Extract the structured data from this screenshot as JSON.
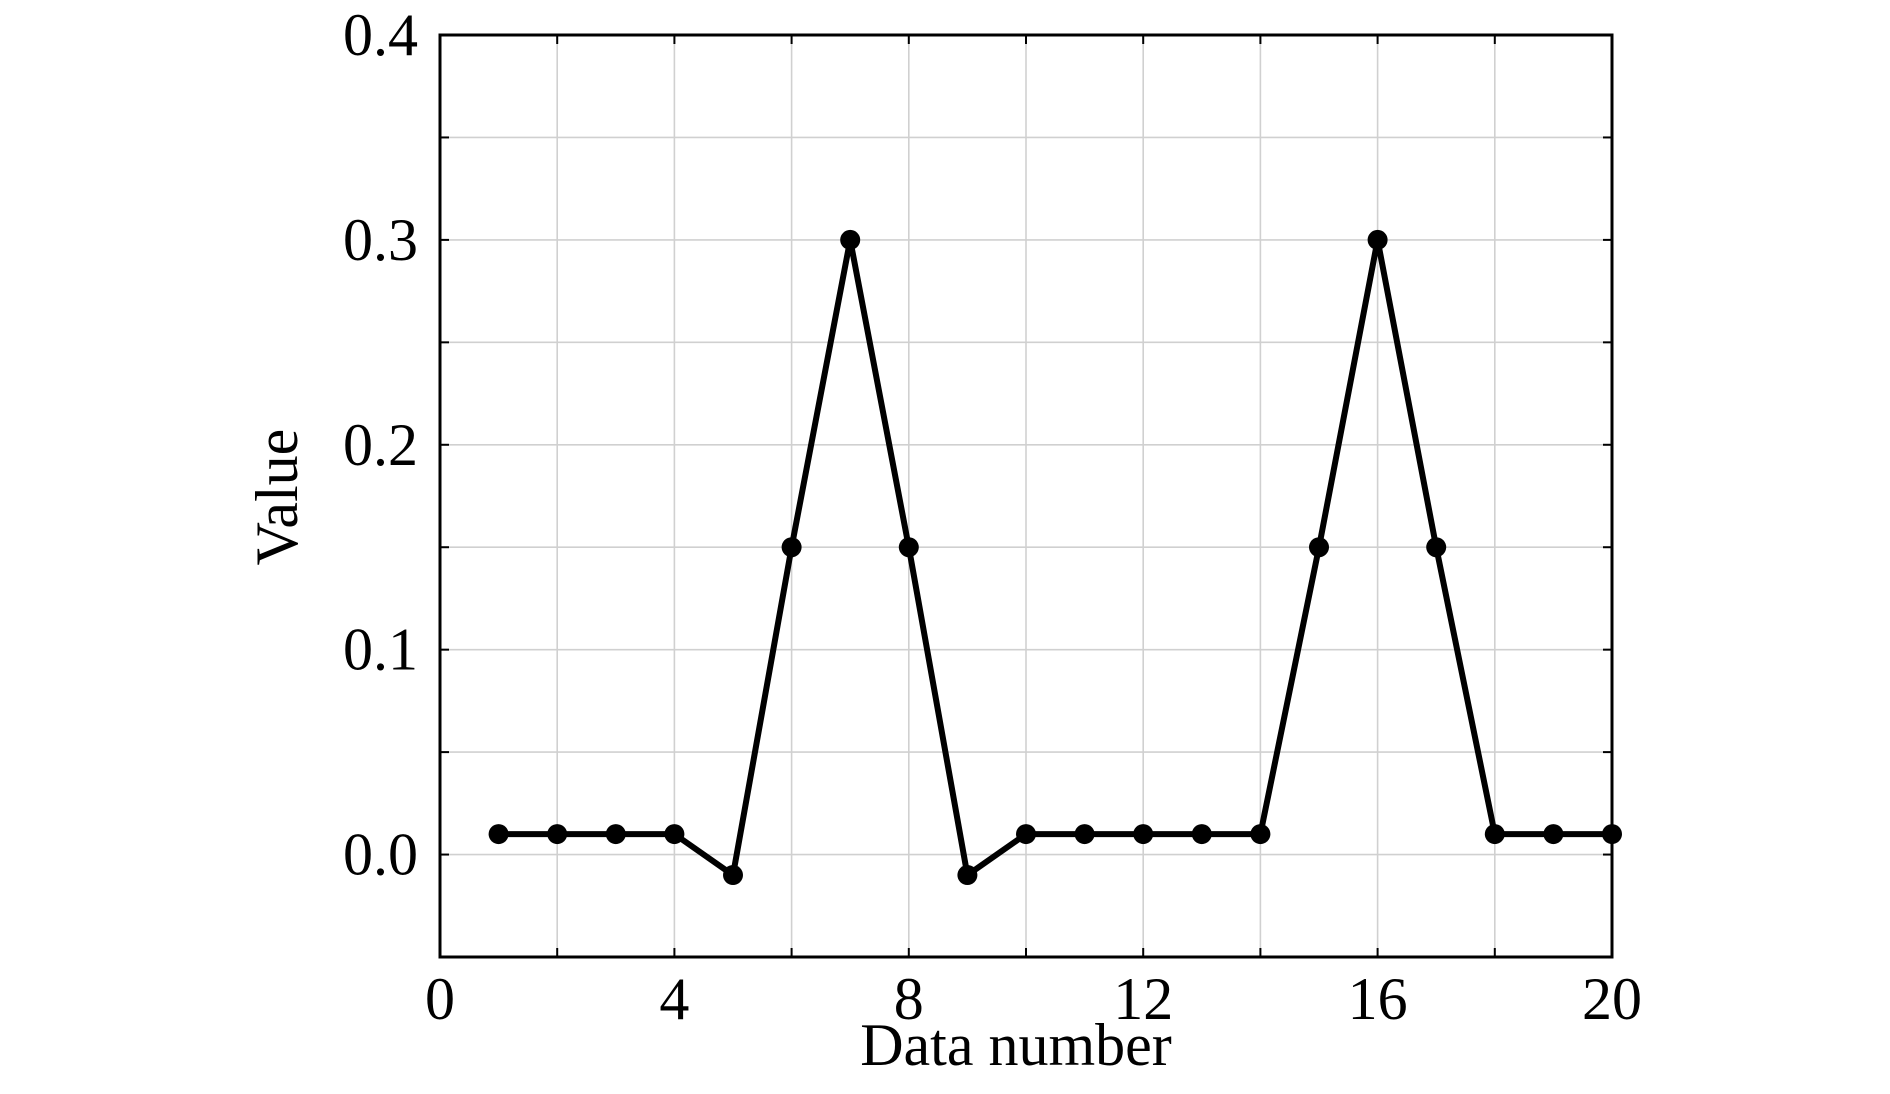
{
  "chart_data": {
    "type": "line",
    "title": "",
    "xlabel": "Data number",
    "ylabel": "Value",
    "xlim": [
      0,
      20
    ],
    "ylim": [
      -0.05,
      0.4
    ],
    "xticks": [
      0,
      4,
      8,
      12,
      16,
      20
    ],
    "xtick_labels": [
      "0",
      "4",
      "8",
      "12",
      "16",
      "20"
    ],
    "yticks": [
      0.0,
      0.1,
      0.2,
      0.3,
      0.4
    ],
    "ytick_labels": [
      "0.0",
      "0.1",
      "0.2",
      "0.3",
      "0.4"
    ],
    "x_minor_gridlines": [
      2,
      6,
      10,
      14,
      18
    ],
    "y_minor_gridlines": [
      0.05,
      0.15,
      0.25,
      0.35
    ],
    "grid": true,
    "legend": "none",
    "line_color": "#000000",
    "series": [
      {
        "x": [
          1,
          2,
          3,
          4,
          5,
          6,
          7,
          8,
          9,
          10,
          11,
          12,
          13,
          14,
          15,
          16,
          17,
          18,
          19,
          20
        ],
        "values": [
          0.01,
          0.01,
          0.01,
          0.01,
          -0.01,
          0.15,
          0.3,
          0.15,
          -0.01,
          0.01,
          0.01,
          0.01,
          0.01,
          0.01,
          0.15,
          0.3,
          0.15,
          0.01,
          0.01,
          0.01
        ]
      }
    ]
  }
}
